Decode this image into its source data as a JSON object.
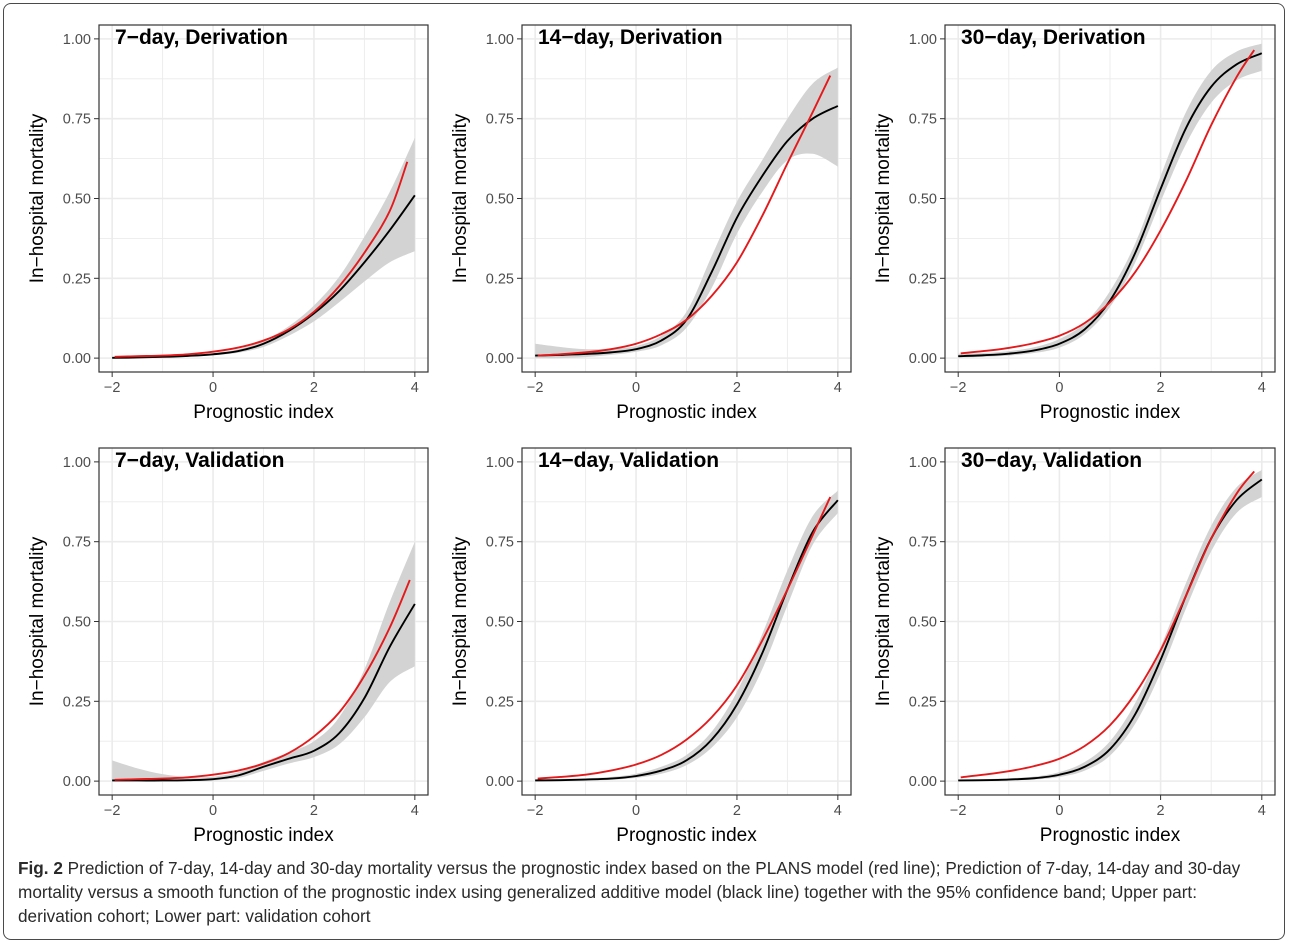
{
  "figure": {
    "caption_label": "Fig. 2",
    "caption_text": " Prediction of 7-day, 14-day and 30-day mortality versus the prognostic index based on the PLANS model (red line); Prediction of 7-day, 14-day and 30-day mortality versus a smooth function of the prognostic index using generalized additive model (black line) together with the 95% confidence band; Upper part: derivation cohort; Lower part: validation cohort",
    "colors": {
      "red_line": "#e31a1c",
      "black_line": "#000000",
      "band": "#d3d3d3",
      "grid": "#ebebeb",
      "panel_border": "#333333"
    }
  },
  "chart_data": [
    {
      "type": "line",
      "title": "7−day, Derivation",
      "xlabel": "Prognostic index",
      "ylabel": "In−hospital mortality",
      "xlim": [
        -2,
        4
      ],
      "ylim": [
        0,
        1
      ],
      "xticks": [
        -2,
        0,
        2,
        4
      ],
      "xtick_labels": [
        "−2",
        "0",
        "2",
        "4"
      ],
      "yticks": [
        0,
        0.25,
        0.5,
        0.75,
        1.0
      ],
      "ytick_labels": [
        "0.00",
        "0.25",
        "0.50",
        "0.75",
        "1.00"
      ],
      "grid": true,
      "x": [
        -2.0,
        -1.5,
        -1.0,
        -0.5,
        0.0,
        0.5,
        1.0,
        1.5,
        2.0,
        2.5,
        3.0,
        3.5,
        4.0
      ],
      "series": [
        {
          "color": "red",
          "x": [
            -1.95,
            -1.5,
            -1.0,
            -0.5,
            0.0,
            0.5,
            1.0,
            1.5,
            2.0,
            2.5,
            3.0,
            3.5,
            3.85
          ],
          "values": [
            0.004,
            0.006,
            0.008,
            0.012,
            0.02,
            0.033,
            0.055,
            0.09,
            0.145,
            0.225,
            0.33,
            0.46,
            0.615
          ]
        },
        {
          "color": "black",
          "values": [
            0.001,
            0.002,
            0.004,
            0.007,
            0.012,
            0.022,
            0.045,
            0.085,
            0.14,
            0.21,
            0.3,
            0.4,
            0.51
          ]
        }
      ],
      "band": {
        "lower": [
          0.0,
          0.001,
          0.002,
          0.005,
          0.009,
          0.017,
          0.035,
          0.07,
          0.115,
          0.175,
          0.24,
          0.3,
          0.335
        ],
        "upper": [
          0.004,
          0.004,
          0.006,
          0.01,
          0.016,
          0.028,
          0.055,
          0.1,
          0.165,
          0.255,
          0.38,
          0.52,
          0.69
        ]
      }
    },
    {
      "type": "line",
      "title": "14−day, Derivation",
      "xlabel": "Prognostic index",
      "ylabel": "In−hospital mortality",
      "xlim": [
        -2,
        4
      ],
      "ylim": [
        0,
        1
      ],
      "xticks": [
        -2,
        0,
        2,
        4
      ],
      "xtick_labels": [
        "−2",
        "0",
        "2",
        "4"
      ],
      "yticks": [
        0,
        0.25,
        0.5,
        0.75,
        1.0
      ],
      "ytick_labels": [
        "0.00",
        "0.25",
        "0.50",
        "0.75",
        "1.00"
      ],
      "grid": true,
      "x": [
        -2.0,
        -1.5,
        -1.0,
        -0.5,
        0.0,
        0.5,
        1.0,
        1.5,
        2.0,
        2.5,
        3.0,
        3.5,
        4.0
      ],
      "series": [
        {
          "color": "red",
          "x": [
            -1.95,
            -1.5,
            -1.0,
            -0.5,
            0.0,
            0.5,
            1.0,
            1.5,
            2.0,
            2.5,
            3.0,
            3.5,
            3.85
          ],
          "values": [
            0.008,
            0.012,
            0.018,
            0.028,
            0.045,
            0.075,
            0.12,
            0.195,
            0.3,
            0.445,
            0.61,
            0.77,
            0.885
          ]
        },
        {
          "color": "black",
          "values": [
            0.008,
            0.01,
            0.013,
            0.018,
            0.028,
            0.055,
            0.12,
            0.27,
            0.44,
            0.57,
            0.68,
            0.75,
            0.79
          ]
        }
      ],
      "band": {
        "lower": [
          0.0,
          0.0,
          0.003,
          0.01,
          0.02,
          0.04,
          0.095,
          0.22,
          0.39,
          0.52,
          0.62,
          0.64,
          0.6
        ]
      },
      "band_upper": [
        0.045,
        0.035,
        0.028,
        0.03,
        0.038,
        0.07,
        0.145,
        0.32,
        0.49,
        0.62,
        0.75,
        0.86,
        0.91
      ]
    },
    {
      "type": "line",
      "title": "30−day, Derivation",
      "xlabel": "Prognostic index",
      "ylabel": "In−hospital mortality",
      "xlim": [
        -2,
        4
      ],
      "ylim": [
        0,
        1
      ],
      "xticks": [
        -2,
        0,
        2,
        4
      ],
      "xtick_labels": [
        "−2",
        "0",
        "2",
        "4"
      ],
      "yticks": [
        0,
        0.25,
        0.5,
        0.75,
        1.0
      ],
      "ytick_labels": [
        "0.00",
        "0.25",
        "0.50",
        "0.75",
        "1.00"
      ],
      "grid": true,
      "x": [
        -2.0,
        -1.5,
        -1.0,
        -0.5,
        0.0,
        0.5,
        1.0,
        1.5,
        2.0,
        2.5,
        3.0,
        3.5,
        4.0
      ],
      "series": [
        {
          "color": "red",
          "x": [
            -1.95,
            -1.5,
            -1.0,
            -0.5,
            0.0,
            0.5,
            1.0,
            1.5,
            2.0,
            2.5,
            3.0,
            3.5,
            3.85
          ],
          "values": [
            0.015,
            0.022,
            0.032,
            0.047,
            0.07,
            0.11,
            0.175,
            0.27,
            0.4,
            0.555,
            0.73,
            0.88,
            0.965
          ]
        },
        {
          "color": "black",
          "values": [
            0.006,
            0.009,
            0.014,
            0.024,
            0.045,
            0.09,
            0.18,
            0.33,
            0.53,
            0.72,
            0.85,
            0.92,
            0.955
          ]
        }
      ],
      "band": {
        "lower": [
          0.002,
          0.004,
          0.008,
          0.016,
          0.033,
          0.075,
          0.16,
          0.3,
          0.49,
          0.67,
          0.8,
          0.87,
          0.9
        ]
      },
      "band_upper": [
        0.014,
        0.016,
        0.022,
        0.034,
        0.06,
        0.11,
        0.21,
        0.36,
        0.57,
        0.77,
        0.9,
        0.96,
        0.985
      ]
    },
    {
      "type": "line",
      "title": "7−day, Validation",
      "xlabel": "Prognostic index",
      "ylabel": "In−hospital mortality",
      "xlim": [
        -2,
        4
      ],
      "ylim": [
        0,
        1
      ],
      "xticks": [
        -2,
        0,
        2,
        4
      ],
      "xtick_labels": [
        "−2",
        "0",
        "2",
        "4"
      ],
      "yticks": [
        0,
        0.25,
        0.5,
        0.75,
        1.0
      ],
      "ytick_labels": [
        "0.00",
        "0.25",
        "0.50",
        "0.75",
        "1.00"
      ],
      "grid": true,
      "x": [
        -2.0,
        -1.5,
        -1.0,
        -0.5,
        0.0,
        0.5,
        1.0,
        1.5,
        2.0,
        2.5,
        3.0,
        3.5,
        4.0
      ],
      "series": [
        {
          "color": "red",
          "x": [
            -1.95,
            -1.5,
            -1.0,
            -0.5,
            0.0,
            0.5,
            1.0,
            1.5,
            2.0,
            2.5,
            3.0,
            3.5,
            3.9
          ],
          "values": [
            0.004,
            0.006,
            0.008,
            0.012,
            0.02,
            0.033,
            0.055,
            0.088,
            0.14,
            0.215,
            0.33,
            0.48,
            0.63
          ]
        },
        {
          "color": "black",
          "values": [
            0.002,
            0.002,
            0.002,
            0.003,
            0.006,
            0.018,
            0.045,
            0.07,
            0.095,
            0.15,
            0.26,
            0.42,
            0.555
          ]
        }
      ],
      "band": {
        "lower": [
          0.0,
          0.0,
          0.0,
          0.0,
          0.002,
          0.01,
          0.032,
          0.055,
          0.075,
          0.115,
          0.2,
          0.31,
          0.36
        ]
      },
      "band_upper": [
        0.065,
        0.04,
        0.022,
        0.013,
        0.014,
        0.028,
        0.06,
        0.09,
        0.125,
        0.2,
        0.35,
        0.56,
        0.75
      ]
    },
    {
      "type": "line",
      "title": "14−day, Validation",
      "xlabel": "Prognostic index",
      "ylabel": "In−hospital mortality",
      "xlim": [
        -2,
        4
      ],
      "ylim": [
        0,
        1
      ],
      "xticks": [
        -2,
        0,
        2,
        4
      ],
      "xtick_labels": [
        "−2",
        "0",
        "2",
        "4"
      ],
      "yticks": [
        0,
        0.25,
        0.5,
        0.75,
        1.0
      ],
      "ytick_labels": [
        "0.00",
        "0.25",
        "0.50",
        "0.75",
        "1.00"
      ],
      "grid": true,
      "x": [
        -2.0,
        -1.5,
        -1.0,
        -0.5,
        0.0,
        0.5,
        1.0,
        1.5,
        2.0,
        2.5,
        3.0,
        3.5,
        4.0
      ],
      "series": [
        {
          "color": "red",
          "x": [
            -1.95,
            -1.5,
            -1.0,
            -0.5,
            0.0,
            0.5,
            1.0,
            1.5,
            2.0,
            2.5,
            3.0,
            3.5,
            3.85
          ],
          "values": [
            0.008,
            0.013,
            0.02,
            0.033,
            0.052,
            0.082,
            0.13,
            0.2,
            0.3,
            0.44,
            0.6,
            0.77,
            0.89
          ]
        },
        {
          "color": "black",
          "values": [
            0.002,
            0.003,
            0.005,
            0.008,
            0.016,
            0.033,
            0.065,
            0.13,
            0.24,
            0.4,
            0.6,
            0.78,
            0.88
          ]
        }
      ],
      "band": {
        "lower": [
          0.0,
          0.001,
          0.002,
          0.004,
          0.01,
          0.023,
          0.05,
          0.105,
          0.2,
          0.35,
          0.55,
          0.74,
          0.84
        ]
      },
      "band_upper": [
        0.006,
        0.007,
        0.009,
        0.013,
        0.023,
        0.045,
        0.082,
        0.155,
        0.28,
        0.46,
        0.66,
        0.83,
        0.91
      ]
    },
    {
      "type": "line",
      "title": "30−day, Validation",
      "xlabel": "Prognostic index",
      "ylabel": "In−hospital mortality",
      "xlim": [
        -2,
        4
      ],
      "ylim": [
        0,
        1
      ],
      "xticks": [
        -2,
        0,
        2,
        4
      ],
      "xtick_labels": [
        "−2",
        "0",
        "2",
        "4"
      ],
      "yticks": [
        0,
        0.25,
        0.5,
        0.75,
        1.0
      ],
      "ytick_labels": [
        "0.00",
        "0.25",
        "0.50",
        "0.75",
        "1.00"
      ],
      "grid": true,
      "x": [
        -2.0,
        -1.5,
        -1.0,
        -0.5,
        0.0,
        0.5,
        1.0,
        1.5,
        2.0,
        2.5,
        3.0,
        3.5,
        4.0
      ],
      "series": [
        {
          "color": "red",
          "x": [
            -1.95,
            -1.5,
            -1.0,
            -0.5,
            0.0,
            0.5,
            1.0,
            1.5,
            2.0,
            2.5,
            3.0,
            3.5,
            3.85
          ],
          "values": [
            0.012,
            0.02,
            0.031,
            0.047,
            0.07,
            0.11,
            0.175,
            0.275,
            0.41,
            0.58,
            0.76,
            0.9,
            0.97
          ]
        },
        {
          "color": "black",
          "values": [
            0.002,
            0.003,
            0.005,
            0.009,
            0.02,
            0.045,
            0.1,
            0.21,
            0.38,
            0.58,
            0.76,
            0.88,
            0.945
          ]
        }
      ],
      "band": {
        "lower": [
          0.0,
          0.001,
          0.002,
          0.005,
          0.013,
          0.033,
          0.08,
          0.18,
          0.34,
          0.54,
          0.72,
          0.84,
          0.89
        ]
      },
      "band_upper": [
        0.005,
        0.006,
        0.009,
        0.014,
        0.028,
        0.06,
        0.125,
        0.245,
        0.42,
        0.62,
        0.8,
        0.92,
        0.975
      ]
    }
  ]
}
